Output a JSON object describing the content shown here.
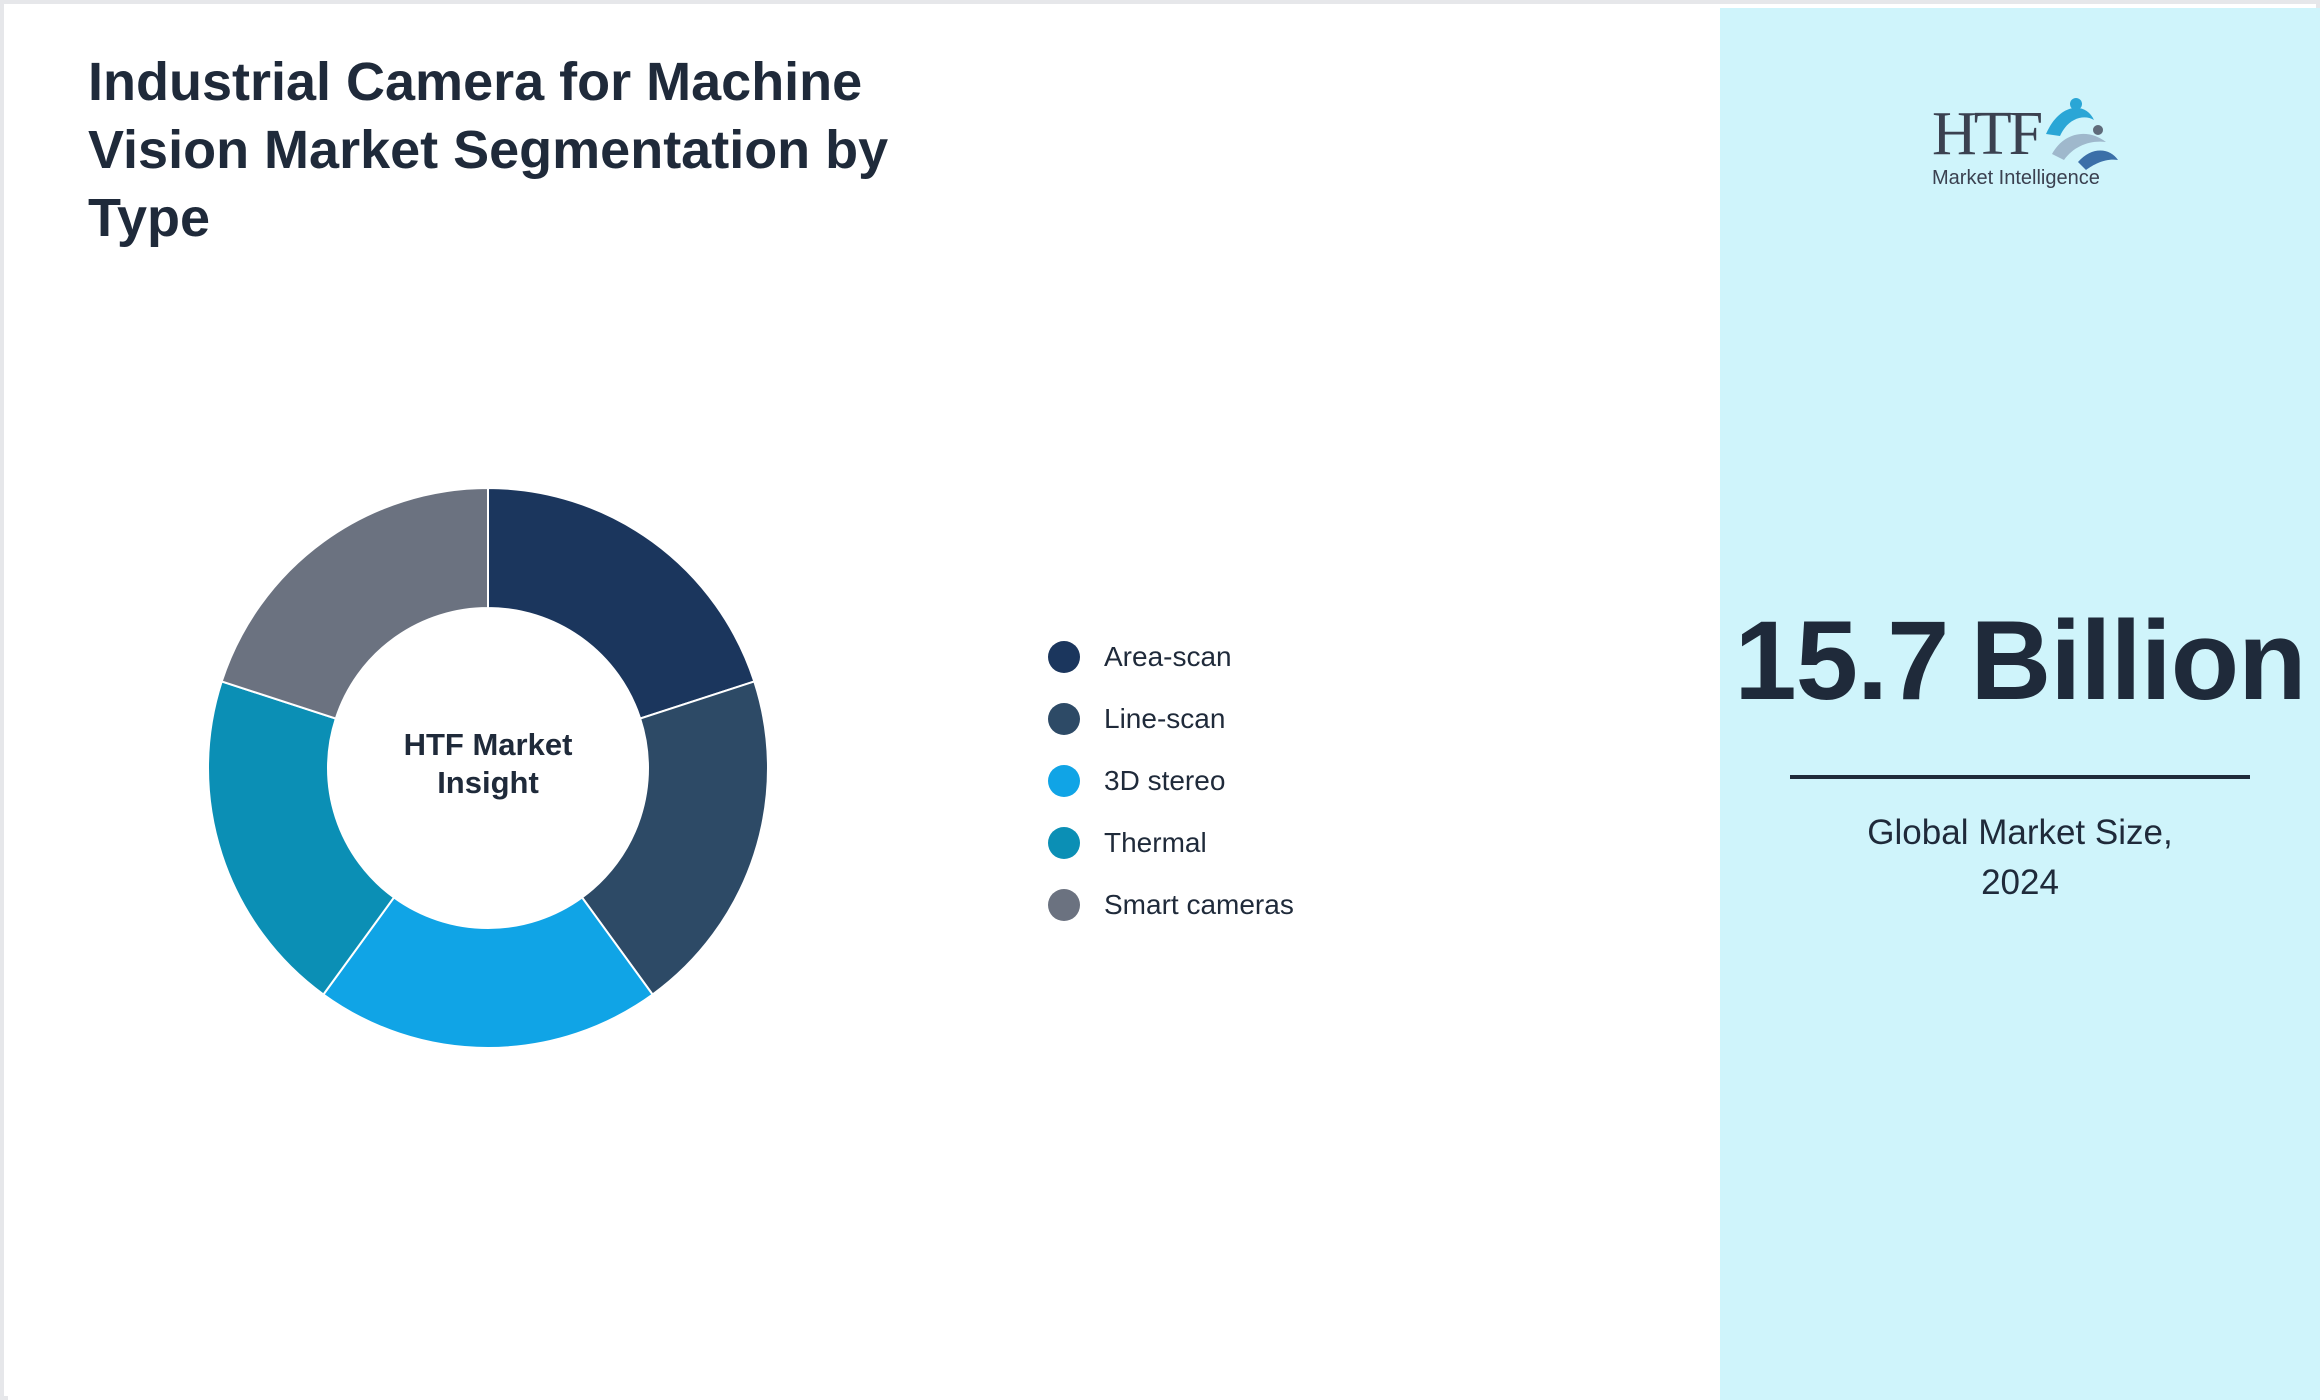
{
  "chart_data": {
    "type": "pie",
    "title": "Industrial Camera for Machine Vision Market Segmentation by Type",
    "center_label": "HTF Market Insight",
    "categories": [
      "Area-scan",
      "Line-scan",
      "3D stereo",
      "Thermal",
      "Smart cameras"
    ],
    "values": [
      20,
      20,
      20,
      20,
      20
    ],
    "colors": [
      "#1b365d",
      "#2d4a66",
      "#10a4e6",
      "#0b8fb5",
      "#6b7280"
    ],
    "legend_position": "right",
    "donut": true
  },
  "logo": {
    "main_text": "HTF",
    "sub_text": "Market Intelligence"
  },
  "kpi": {
    "number": "15.7",
    "unit": "Billion",
    "caption_line1": "Global Market Size,",
    "caption_line2": "2024"
  },
  "colors": {
    "panel_background": "#cff4fb",
    "text": "#1f2a3a",
    "slice_border": "#ffffff"
  }
}
